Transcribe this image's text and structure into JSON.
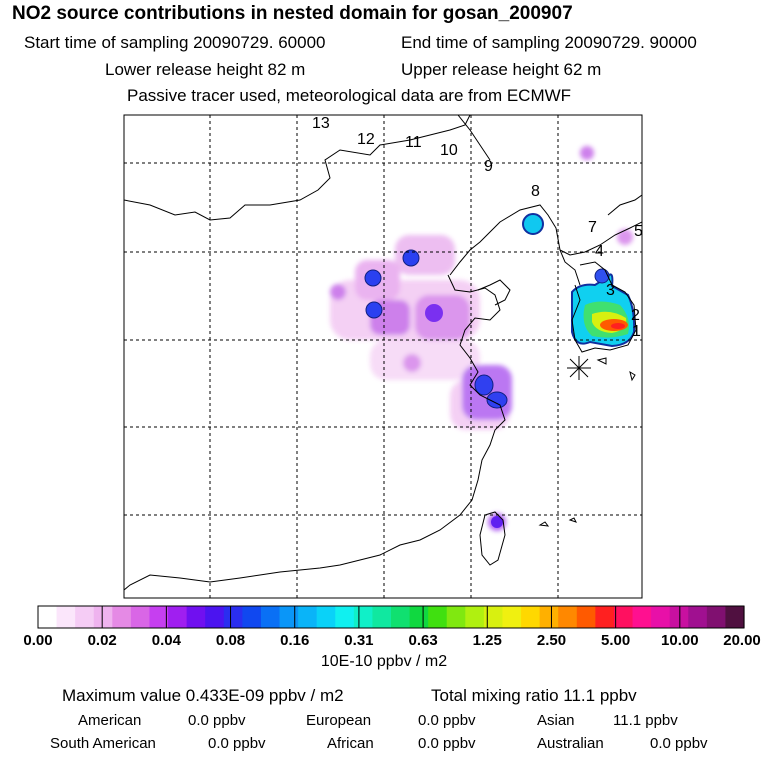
{
  "title": "NO2 source contributions in nested domain for gosan_200907",
  "header": {
    "start_time": "Start time of sampling 20090729. 60000",
    "end_time": "End time of sampling 20090729. 90000",
    "lower_height": "Lower release height   82 m",
    "upper_height": "Upper release height   62 m",
    "tracer_note": "Passive tracer used, meteorological data are from ECMWF"
  },
  "map": {
    "trajectory_labels": [
      "13",
      "12",
      "11",
      "10",
      "9",
      "8",
      "7",
      "4",
      "3",
      "2",
      "1",
      "5"
    ],
    "receptor_marker": "asterisk"
  },
  "colorbar": {
    "tick_labels": [
      "0.00",
      "0.02",
      "0.04",
      "0.08",
      "0.16",
      "0.31",
      "0.63",
      "1.25",
      "2.50",
      "5.00",
      "10.00",
      "20.00"
    ],
    "unit_label": "10E-10 ppbv / m2",
    "colors": [
      "#ffffff",
      "#fbe6fb",
      "#f5ccf5",
      "#efb3ef",
      "#e58ae5",
      "#d966e6",
      "#c63ff0",
      "#a01ff0",
      "#7010f0",
      "#4b14f0",
      "#2a2ef0",
      "#1048f0",
      "#0a70f5",
      "#0a96f8",
      "#0ab4f8",
      "#0ad2f8",
      "#10f0f0",
      "#10f0c8",
      "#10e8a0",
      "#10e070",
      "#10d840",
      "#40e010",
      "#80e810",
      "#b0f010",
      "#d8f010",
      "#f0f010",
      "#ffd800",
      "#ffb000",
      "#ff8800",
      "#ff5a00",
      "#ff2020",
      "#ff1060",
      "#ff1090",
      "#e810a8",
      "#c810a0",
      "#a01090",
      "#801070",
      "#501040"
    ]
  },
  "stats": {
    "max_value": "Maximum value  0.433E-09 ppbv / m2",
    "total_mixing_ratio": "Total mixing ratio      11.1 ppbv",
    "regions": [
      {
        "name": "American",
        "value": "0.0 ppbv"
      },
      {
        "name": "European",
        "value": "0.0 ppbv"
      },
      {
        "name": "Asian",
        "value": "11.1 ppbv"
      },
      {
        "name": "South American",
        "value": "0.0 ppbv"
      },
      {
        "name": "African",
        "value": "0.0 ppbv"
      },
      {
        "name": "Australian",
        "value": "0.0 ppbv"
      }
    ]
  }
}
